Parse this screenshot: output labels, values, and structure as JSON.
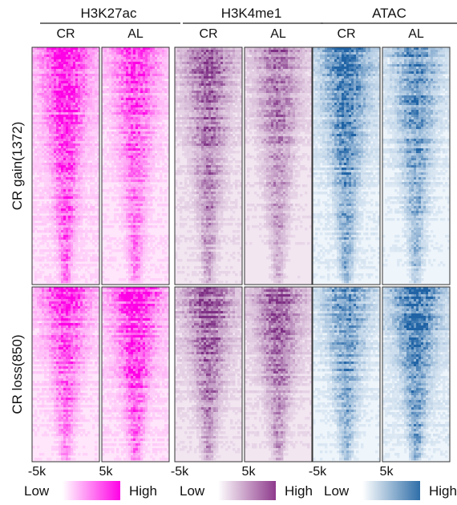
{
  "chart_data": {
    "type": "heatmap",
    "marks": [
      "H3K27ac",
      "H3K4me1",
      "ATAC"
    ],
    "conditions": [
      "CR",
      "AL"
    ],
    "groups": [
      {
        "label": "CR gain(1372)"
      },
      {
        "label": "CR loss(850)"
      }
    ],
    "x_tick_labels": [
      "-5k",
      "5k"
    ],
    "x_range_kb": [
      -5,
      5
    ],
    "legends": [
      {
        "low": "Low",
        "high": "High",
        "low_color": "#ffffff",
        "high_color": "#ff00e6"
      },
      {
        "low": "Low",
        "high": "High",
        "low_color": "#ffffff",
        "high_color": "#8e3a8c"
      },
      {
        "low": "Low",
        "high": "High",
        "low_color": "#ffffff",
        "high_color": "#2f6ea8"
      }
    ],
    "mark_colors": {
      "H3K27ac": {
        "dark": "#ff00e6",
        "light": "#ffe6fb"
      },
      "H3K4me1": {
        "dark": "#7e2f84",
        "light": "#f2e6f1"
      },
      "ATAC": {
        "dark": "#1f63a5",
        "light": "#eef5fb"
      }
    },
    "relative_signal": {
      "H3K27ac": {
        "gain": {
          "CR": 1.0,
          "AL": 0.75
        },
        "loss": {
          "CR": 0.8,
          "AL": 1.0
        }
      },
      "H3K4me1": {
        "gain": {
          "CR": 0.75,
          "AL": 0.6
        },
        "loss": {
          "CR": 0.85,
          "AL": 0.75
        }
      },
      "ATAC": {
        "gain": {
          "CR": 0.85,
          "AL": 0.7
        },
        "loss": {
          "CR": 0.7,
          "AL": 0.95
        }
      }
    }
  }
}
